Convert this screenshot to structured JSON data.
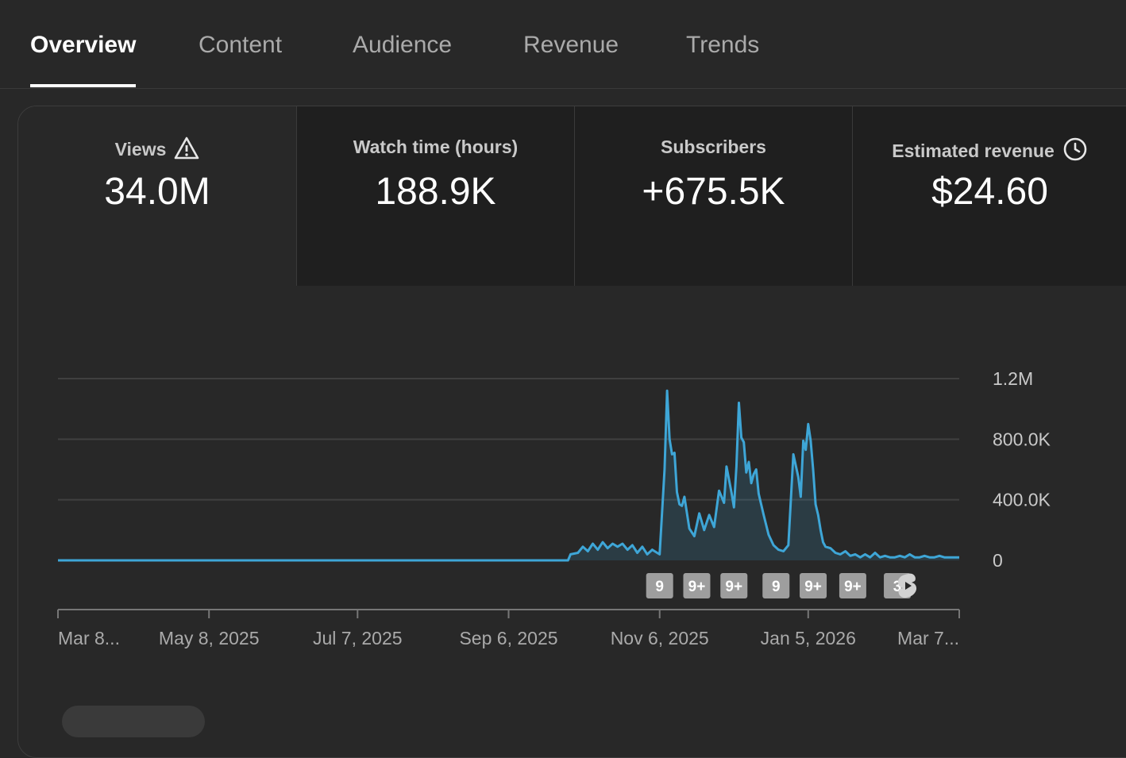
{
  "tabs": [
    {
      "label": "Overview",
      "active": true
    },
    {
      "label": "Content",
      "active": false
    },
    {
      "label": "Audience",
      "active": false
    },
    {
      "label": "Revenue",
      "active": false
    },
    {
      "label": "Trends",
      "active": false
    }
  ],
  "metrics": [
    {
      "label": "Views",
      "value": "34.0M",
      "icon": "warning-icon"
    },
    {
      "label": "Watch time (hours)",
      "value": "188.9K"
    },
    {
      "label": "Subscribers",
      "value": "+675.5K"
    },
    {
      "label": "Estimated revenue",
      "value": "$24.60",
      "icon": "clock-icon"
    }
  ],
  "chart_data": {
    "type": "area",
    "xlim": [
      "2025-03-08",
      "2026-03-07"
    ],
    "ylim": [
      0,
      1200000
    ],
    "yticks": [
      0,
      400000,
      800000,
      1200000
    ],
    "ytick_labels": [
      "0",
      "400.0K",
      "800.0K",
      "1.2M"
    ],
    "xticks": [
      "2025-03-08",
      "2025-05-08",
      "2025-07-07",
      "2025-09-06",
      "2025-11-06",
      "2026-01-05",
      "2026-03-07"
    ],
    "xtick_labels": [
      "Mar 8...",
      "May 8, 2025",
      "Jul 7, 2025",
      "Sep 6, 2025",
      "Nov 6, 2025",
      "Jan 5, 2026",
      "Mar 7..."
    ],
    "grid": true,
    "color": "#3ea6d7",
    "series": [
      {
        "x": [
          "2025-03-08",
          "2025-09-30",
          "2025-10-01",
          "2025-10-04",
          "2025-10-06",
          "2025-10-08",
          "2025-10-10",
          "2025-10-12",
          "2025-10-14",
          "2025-10-16",
          "2025-10-18",
          "2025-10-20",
          "2025-10-22",
          "2025-10-24",
          "2025-10-26",
          "2025-10-28",
          "2025-10-30",
          "2025-11-01",
          "2025-11-03",
          "2025-11-05",
          "2025-11-06",
          "2025-11-08",
          "2025-11-09",
          "2025-11-10",
          "2025-11-11",
          "2025-11-12",
          "2025-11-13",
          "2025-11-14",
          "2025-11-15",
          "2025-11-16",
          "2025-11-18",
          "2025-11-20",
          "2025-11-22",
          "2025-11-24",
          "2025-11-26",
          "2025-11-28",
          "2025-11-30",
          "2025-12-02",
          "2025-12-03",
          "2025-12-05",
          "2025-12-06",
          "2025-12-07",
          "2025-12-08",
          "2025-12-09",
          "2025-12-10",
          "2025-12-11",
          "2025-12-12",
          "2025-12-13",
          "2025-12-14",
          "2025-12-15",
          "2025-12-16",
          "2025-12-18",
          "2025-12-20",
          "2025-12-22",
          "2025-12-24",
          "2025-12-26",
          "2025-12-28",
          "2025-12-30",
          "2026-01-01",
          "2026-01-02",
          "2026-01-03",
          "2026-01-04",
          "2026-01-05",
          "2026-01-06",
          "2026-01-07",
          "2026-01-08",
          "2026-01-09",
          "2026-01-10",
          "2026-01-11",
          "2026-01-12",
          "2026-01-14",
          "2026-01-16",
          "2026-01-18",
          "2026-01-20",
          "2026-01-22",
          "2026-01-24",
          "2026-01-26",
          "2026-01-28",
          "2026-01-30",
          "2026-02-01",
          "2026-02-03",
          "2026-02-05",
          "2026-02-07",
          "2026-02-09",
          "2026-02-11",
          "2026-02-13",
          "2026-02-15",
          "2026-02-17",
          "2026-02-19",
          "2026-02-21",
          "2026-02-23",
          "2026-02-25",
          "2026-02-27",
          "2026-03-01",
          "2026-03-03",
          "2026-03-05",
          "2026-03-07"
        ],
        "y": [
          0,
          0,
          40000,
          50000,
          90000,
          60000,
          110000,
          70000,
          120000,
          80000,
          110000,
          90000,
          110000,
          70000,
          100000,
          50000,
          90000,
          40000,
          70000,
          50000,
          40000,
          600000,
          1120000,
          800000,
          700000,
          710000,
          450000,
          370000,
          360000,
          420000,
          210000,
          160000,
          310000,
          200000,
          300000,
          220000,
          460000,
          380000,
          620000,
          450000,
          350000,
          620000,
          1040000,
          810000,
          780000,
          580000,
          650000,
          510000,
          570000,
          600000,
          440000,
          300000,
          170000,
          100000,
          70000,
          60000,
          100000,
          700000,
          550000,
          420000,
          790000,
          730000,
          900000,
          790000,
          600000,
          370000,
          300000,
          200000,
          120000,
          90000,
          80000,
          50000,
          40000,
          60000,
          30000,
          40000,
          20000,
          40000,
          20000,
          50000,
          20000,
          30000,
          20000,
          20000,
          30000,
          20000,
          40000,
          20000,
          20000,
          30000,
          20000,
          20000,
          30000,
          20000,
          20000,
          20000,
          20000
        ]
      }
    ],
    "annotations": [
      {
        "date": "2025-11-06",
        "label": "9"
      },
      {
        "date": "2025-11-21",
        "label": "9+"
      },
      {
        "date": "2025-12-06",
        "label": "9+"
      },
      {
        "date": "2025-12-23",
        "label": "9"
      },
      {
        "date": "2026-01-07",
        "label": "9+"
      },
      {
        "date": "2026-01-23",
        "label": "9+"
      },
      {
        "date": "2026-02-10",
        "label": "3"
      }
    ]
  }
}
